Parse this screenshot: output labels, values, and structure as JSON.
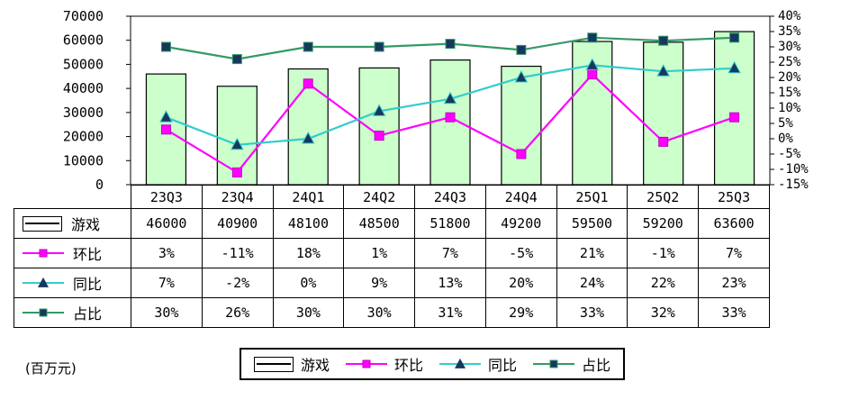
{
  "chart_data": {
    "type": "combo",
    "title": "",
    "unit_note": "(百万元)",
    "categories": [
      "23Q3",
      "23Q4",
      "24Q1",
      "24Q2",
      "24Q3",
      "24Q4",
      "25Q1",
      "25Q2",
      "25Q3"
    ],
    "series": [
      {
        "name": "游戏",
        "type": "bar",
        "axis": "left",
        "fill": "#ccffcc",
        "stroke": "#000000",
        "values": [
          46000,
          40900,
          48100,
          48500,
          51800,
          49200,
          59500,
          59200,
          63600
        ],
        "table_values": [
          "46000",
          "40900",
          "48100",
          "48500",
          "51800",
          "49200",
          "59500",
          "59200",
          "63600"
        ]
      },
      {
        "name": "环比",
        "type": "line",
        "axis": "right",
        "color": "#ff00ff",
        "marker": {
          "shape": "square",
          "fill": "#ff00ff",
          "stroke": "#c000c0"
        },
        "values": [
          3,
          -11,
          18,
          1,
          7,
          -5,
          21,
          -1,
          7
        ],
        "table_values": [
          "3%",
          "-11%",
          "18%",
          "1%",
          "7%",
          "-5%",
          "21%",
          "-1%",
          "7%"
        ]
      },
      {
        "name": "同比",
        "type": "line",
        "axis": "right",
        "color": "#33cccc",
        "marker": {
          "shape": "triangle",
          "fill": "#17375e",
          "stroke": "#33cccc"
        },
        "values": [
          7,
          -2,
          0,
          9,
          13,
          20,
          24,
          22,
          23
        ],
        "table_values": [
          "7%",
          "-2%",
          "0%",
          "9%",
          "13%",
          "20%",
          "24%",
          "22%",
          "23%"
        ]
      },
      {
        "name": "占比",
        "type": "line",
        "axis": "right",
        "color": "#339966",
        "marker": {
          "shape": "square",
          "fill": "#17375e",
          "stroke": "#339966"
        },
        "values": [
          30,
          26,
          30,
          30,
          31,
          29,
          33,
          32,
          33
        ],
        "table_values": [
          "30%",
          "26%",
          "30%",
          "30%",
          "31%",
          "29%",
          "33%",
          "32%",
          "33%"
        ]
      }
    ],
    "left_axis": {
      "min": 0,
      "max": 70000,
      "step": 10000,
      "labels": [
        "70000",
        "60000",
        "50000",
        "40000",
        "30000",
        "20000",
        "10000",
        "0"
      ]
    },
    "right_axis": {
      "min": -15,
      "max": 40,
      "step": 5,
      "labels": [
        "40%",
        "35%",
        "30%",
        "25%",
        "20%",
        "15%",
        "10%",
        "5%",
        "0%",
        "-5%",
        "-10%",
        "-15%"
      ]
    },
    "grid": "off",
    "legend_position": "bottom"
  }
}
